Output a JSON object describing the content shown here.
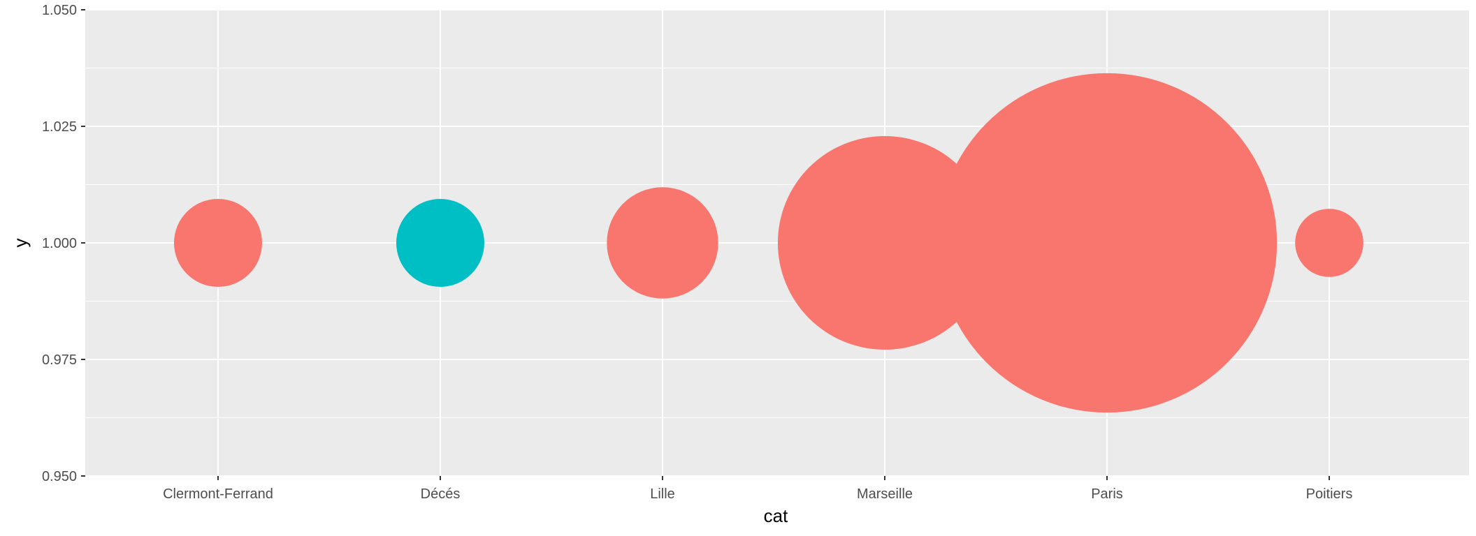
{
  "chart_data": {
    "type": "scatter",
    "xlabel": "cat",
    "ylabel": "y",
    "categories": [
      "Clermont-Ferrand",
      "Décés",
      "Lille",
      "Marseille",
      "Paris",
      "Poitiers"
    ],
    "ylim": [
      0.95,
      1.05
    ],
    "y_ticks": [
      "0.950",
      "0.975",
      "1.000",
      "1.025",
      "1.050"
    ],
    "grid": true,
    "legend": "none",
    "colors": {
      "panel": "#ebebeb",
      "grid": "#ffffff",
      "default_point": "#f8766d",
      "highlight_point": "#00bfc4"
    },
    "points": [
      {
        "x": "Clermont-Ferrand",
        "y": 1.0,
        "size": 1.0,
        "color": "#f8766d"
      },
      {
        "x": "Décés",
        "y": 1.0,
        "size": 1.0,
        "color": "#00bfc4"
      },
      {
        "x": "Lille",
        "y": 1.0,
        "size": 1.6,
        "color": "#f8766d"
      },
      {
        "x": "Marseille",
        "y": 1.0,
        "size": 5.9,
        "color": "#f8766d"
      },
      {
        "x": "Paris",
        "y": 1.0,
        "size": 14.9,
        "color": "#f8766d"
      },
      {
        "x": "Poitiers",
        "y": 1.0,
        "size": 0.6,
        "color": "#f8766d"
      }
    ]
  }
}
